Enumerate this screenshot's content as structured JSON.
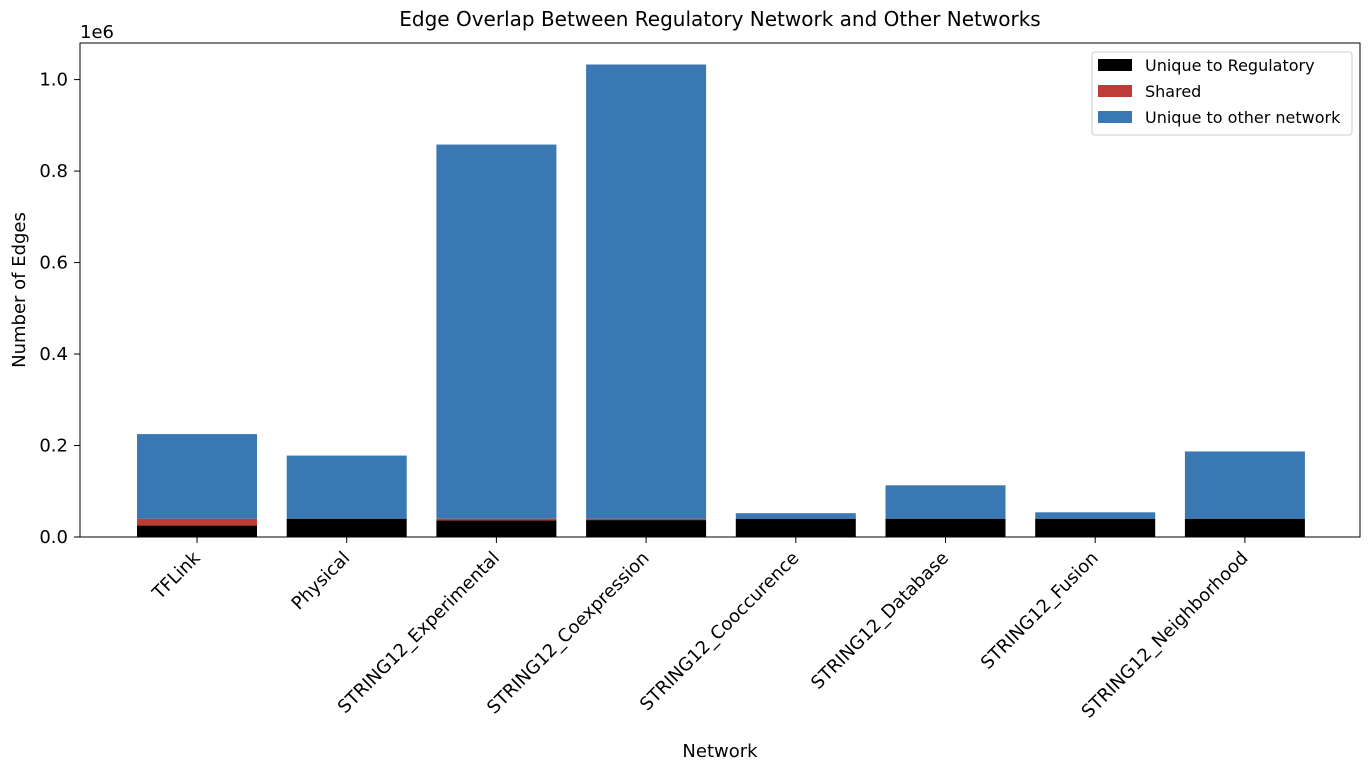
{
  "chart_data": {
    "type": "bar",
    "stacked": true,
    "title": "Edge Overlap Between Regulatory Network and Other Networks",
    "xlabel": "Network",
    "ylabel": "Number of Edges",
    "y_offset_label": "1e6",
    "ylim": [
      0,
      1.08
    ],
    "yticks": [
      0.0,
      0.2,
      0.4,
      0.6,
      0.8,
      1.0
    ],
    "ytick_labels": [
      "0.0",
      "0.2",
      "0.4",
      "0.6",
      "0.8",
      "1.0"
    ],
    "categories": [
      "TFLink",
      "Physical",
      "STRING12_Experimental",
      "STRING12_Coexpression",
      "STRING12_Cooccurence",
      "STRING12_Database",
      "STRING12_Fusion",
      "STRING12_Neighborhood"
    ],
    "series": [
      {
        "name": "Unique to Regulatory",
        "color": "#000000",
        "values": [
          0.025,
          0.04,
          0.036,
          0.037,
          0.04,
          0.04,
          0.04,
          0.04
        ]
      },
      {
        "name": "Shared",
        "color": "#be3c37",
        "values": [
          0.015,
          0.0,
          0.004,
          0.003,
          0.0,
          0.0,
          0.0,
          0.0
        ]
      },
      {
        "name": "Unique to other network",
        "color": "#3a78b4",
        "values": [
          0.185,
          0.138,
          0.818,
          0.993,
          0.012,
          0.073,
          0.014,
          0.147
        ]
      }
    ],
    "grid": false,
    "legend_position": "top-right"
  }
}
